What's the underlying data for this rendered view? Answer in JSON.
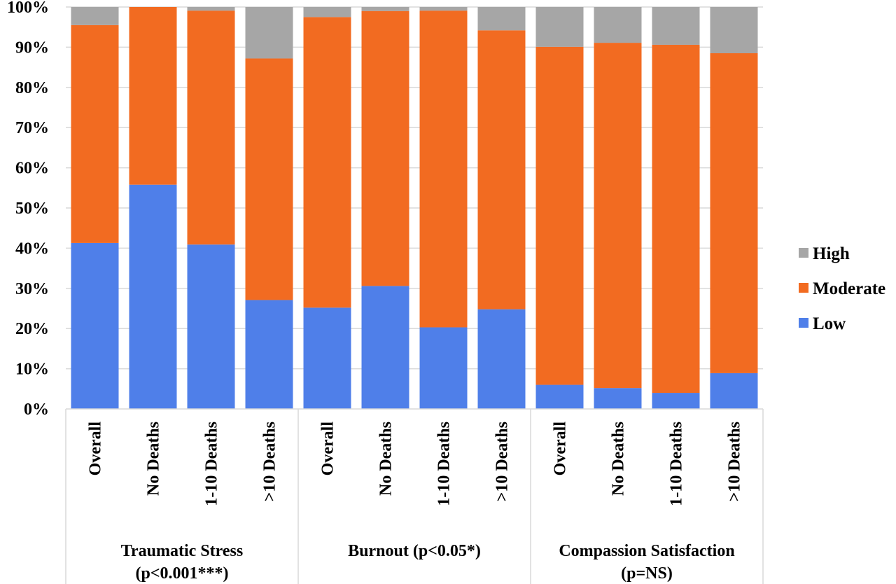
{
  "chart_data": {
    "type": "bar",
    "stacked": true,
    "percent": true,
    "ylim": [
      0,
      100
    ],
    "yticks": [
      "0%",
      "10%",
      "20%",
      "30%",
      "40%",
      "50%",
      "60%",
      "70%",
      "80%",
      "90%",
      "100%"
    ],
    "grid": true,
    "legend_position": "right",
    "categories": [
      "Overall",
      "No Deaths",
      "1-10 Deaths",
      ">10 Deaths",
      "Overall",
      "No Deaths",
      "1-10 Deaths",
      ">10 Deaths",
      "Overall",
      "No Deaths",
      "1-10 Deaths",
      ">10 Deaths"
    ],
    "groups": [
      {
        "label_lines": [
          "Traumatic Stress",
          "(p<0.001***)"
        ],
        "count": 4
      },
      {
        "label_lines": [
          "Burnout (p<0.05*)"
        ],
        "count": 4
      },
      {
        "label_lines": [
          "Compassion Satisfaction",
          "(p=NS)"
        ],
        "count": 4
      }
    ],
    "series": [
      {
        "name": "Low",
        "color": "#4f7fe9",
        "values": [
          41.3,
          55.8,
          40.9,
          27.1,
          25.2,
          30.6,
          20.3,
          24.8,
          6.0,
          5.2,
          4.0,
          8.9
        ]
      },
      {
        "name": "Moderate",
        "color": "#f26b21",
        "values": [
          54.2,
          44.2,
          58.2,
          60.1,
          72.3,
          68.4,
          78.8,
          69.4,
          84.1,
          85.9,
          86.6,
          79.6
        ]
      },
      {
        "name": "High",
        "color": "#a6a6a6",
        "values": [
          4.5,
          0.0,
          0.9,
          12.8,
          2.5,
          1.0,
          0.9,
          5.8,
          9.9,
          8.9,
          9.4,
          11.5
        ]
      }
    ],
    "legend_order": [
      "High",
      "Moderate",
      "Low"
    ]
  }
}
